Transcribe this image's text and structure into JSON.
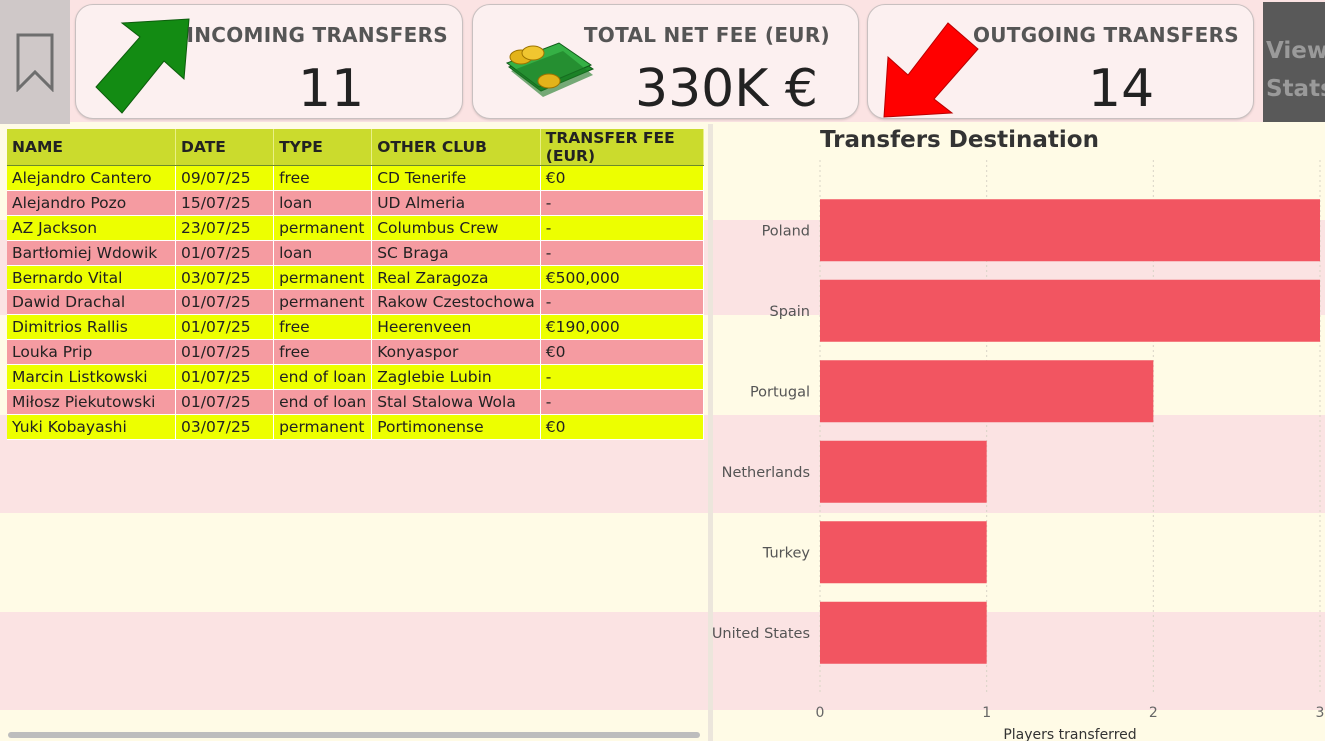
{
  "bookmark": {
    "icon": "bookmark-icon"
  },
  "cards": {
    "incoming": {
      "title": "INCOMING TRANSFERS",
      "value": "11",
      "icon": "green-up-arrow-icon"
    },
    "net_fee": {
      "title": "TOTAL NET FEE (EUR)",
      "value": "330K €",
      "icon": "money-icon"
    },
    "outgoing": {
      "title": "OUTGOING TRANSFERS",
      "value": "14",
      "icon": "red-down-arrow-icon"
    }
  },
  "view_stats": {
    "line1": "View",
    "line2": "Stats"
  },
  "table": {
    "headers": [
      "NAME",
      "DATE",
      "TYPE",
      "OTHER CLUB",
      "TRANSFER FEE (EUR)"
    ],
    "rows": [
      {
        "kind": "in",
        "cells": [
          "Alejandro Cantero",
          "09/07/25",
          "free",
          "CD Tenerife",
          "€0"
        ]
      },
      {
        "kind": "out",
        "cells": [
          "Alejandro Pozo",
          "15/07/25",
          "loan",
          "UD Almeria",
          "-"
        ]
      },
      {
        "kind": "in",
        "cells": [
          "AZ Jackson",
          "23/07/25",
          "permanent",
          "Columbus Crew",
          "-"
        ]
      },
      {
        "kind": "out",
        "cells": [
          "Bartłomiej Wdowik",
          "01/07/25",
          "loan",
          "SC Braga",
          "-"
        ]
      },
      {
        "kind": "in",
        "cells": [
          "Bernardo Vital",
          "03/07/25",
          "permanent",
          "Real Zaragoza",
          "€500,000"
        ]
      },
      {
        "kind": "out",
        "cells": [
          "Dawid Drachal",
          "01/07/25",
          "permanent",
          "Rakow Czestochowa",
          "-"
        ]
      },
      {
        "kind": "in",
        "cells": [
          "Dimitrios Rallis",
          "01/07/25",
          "free",
          "Heerenveen",
          "€190,000"
        ]
      },
      {
        "kind": "out",
        "cells": [
          "Louka Prip",
          "01/07/25",
          "free",
          "Konyaspor",
          "€0"
        ]
      },
      {
        "kind": "in",
        "cells": [
          "Marcin Listkowski",
          "01/07/25",
          "end of loan",
          "Zaglebie Lubin",
          "-"
        ]
      },
      {
        "kind": "out",
        "cells": [
          "Miłosz Piekutowski",
          "01/07/25",
          "end of loan",
          "Stal Stalowa Wola",
          "-"
        ]
      },
      {
        "kind": "in",
        "cells": [
          "Yuki Kobayashi",
          "03/07/25",
          "permanent",
          "Portimonense",
          "€0"
        ]
      }
    ]
  },
  "chart_data": {
    "type": "bar",
    "orientation": "horizontal",
    "title": "Transfers Destination",
    "xlabel": "Players transferred",
    "ylabel": "",
    "categories": [
      "Poland",
      "Spain",
      "Portugal",
      "Netherlands",
      "Turkey",
      "United States"
    ],
    "values": [
      3,
      3,
      2,
      1,
      1,
      1
    ],
    "xlim": [
      0,
      3
    ],
    "xticks": [
      "0",
      "1",
      "2",
      "3"
    ],
    "grid": true,
    "bar_color": "#f25561"
  }
}
